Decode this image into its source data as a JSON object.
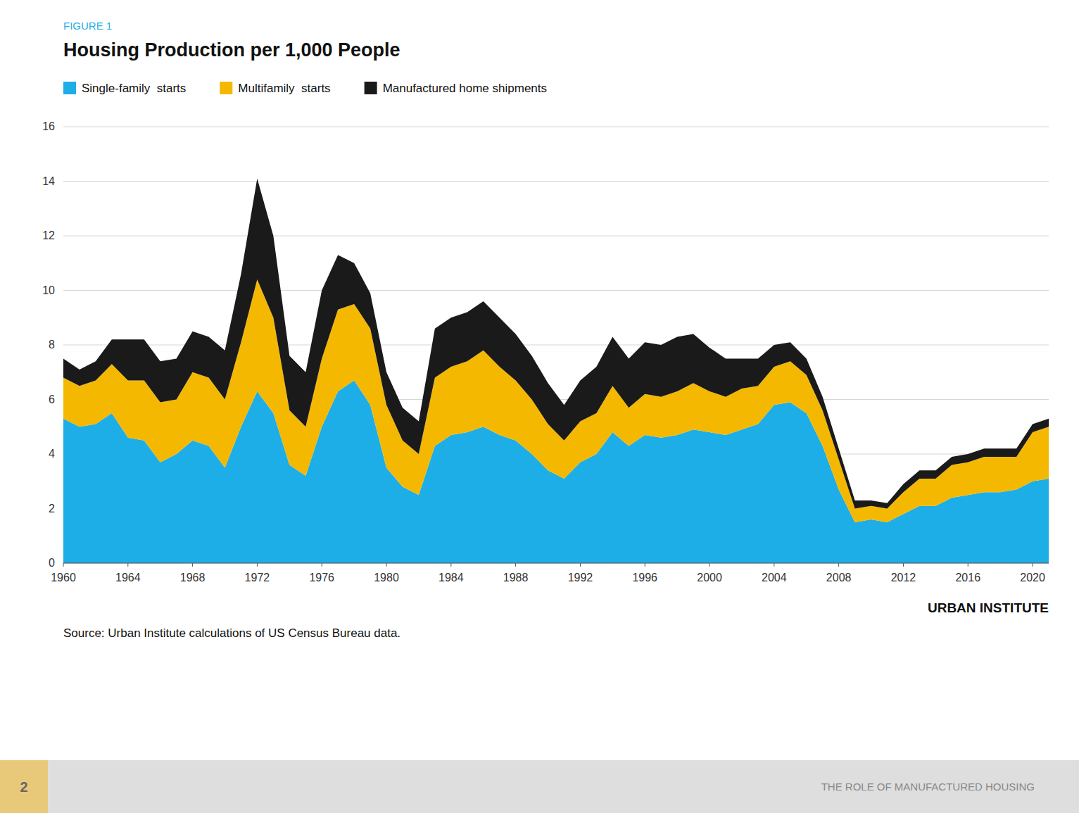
{
  "chart_data": {
    "type": "area",
    "stacked": true,
    "title": "Housing Production per 1,000 People",
    "annotations": [
      "FIGURE 1",
      "Source: Urban Institute calculations of US Census Bureau data.",
      "URBAN INSTITUTE",
      "THE ROLE OF MANUFACTURED HOUSING",
      "2"
    ],
    "x": [
      1960,
      1961,
      1962,
      1963,
      1964,
      1965,
      1966,
      1967,
      1968,
      1969,
      1970,
      1971,
      1972,
      1973,
      1974,
      1975,
      1976,
      1977,
      1978,
      1979,
      1980,
      1981,
      1982,
      1983,
      1984,
      1985,
      1986,
      1987,
      1988,
      1989,
      1990,
      1991,
      1992,
      1993,
      1994,
      1995,
      1996,
      1997,
      1998,
      1999,
      2000,
      2001,
      2002,
      2003,
      2004,
      2005,
      2006,
      2007,
      2008,
      2009,
      2010,
      2011,
      2012,
      2013,
      2014,
      2015,
      2016,
      2017,
      2018,
      2019,
      2020,
      2021
    ],
    "series": [
      {
        "name": "Single-family  starts",
        "color": "#1daee8",
        "values": [
          5.3,
          5.0,
          5.1,
          5.5,
          4.6,
          4.5,
          3.7,
          4.0,
          4.5,
          4.3,
          3.5,
          5.0,
          6.3,
          5.5,
          3.6,
          3.2,
          5.0,
          6.3,
          6.7,
          5.8,
          3.5,
          2.8,
          2.5,
          4.3,
          4.7,
          4.8,
          5.0,
          4.7,
          4.5,
          4.0,
          3.4,
          3.1,
          3.7,
          4.0,
          4.8,
          4.3,
          4.7,
          4.6,
          4.7,
          4.9,
          4.8,
          4.7,
          4.9,
          5.1,
          5.8,
          5.9,
          5.5,
          4.3,
          2.7,
          1.5,
          1.6,
          1.5,
          1.8,
          2.1,
          2.1,
          2.4,
          2.5,
          2.6,
          2.6,
          2.7,
          3.0,
          3.1
        ]
      },
      {
        "name": "Multifamily  starts",
        "color": "#f5b800",
        "values": [
          1.5,
          1.5,
          1.6,
          1.8,
          2.1,
          2.2,
          2.2,
          2.0,
          2.5,
          2.5,
          2.5,
          3.1,
          4.1,
          3.5,
          2.0,
          1.8,
          2.5,
          3.0,
          2.8,
          2.8,
          2.3,
          1.7,
          1.5,
          2.5,
          2.5,
          2.6,
          2.8,
          2.5,
          2.2,
          2.0,
          1.7,
          1.4,
          1.5,
          1.5,
          1.7,
          1.4,
          1.5,
          1.5,
          1.6,
          1.7,
          1.5,
          1.4,
          1.5,
          1.4,
          1.4,
          1.5,
          1.4,
          1.3,
          1.1,
          0.5,
          0.5,
          0.5,
          0.8,
          1.0,
          1.0,
          1.2,
          1.2,
          1.3,
          1.3,
          1.2,
          1.8,
          1.9
        ]
      },
      {
        "name": "Manufactured home shipments",
        "color": "#1a1a1a",
        "values": [
          0.7,
          0.6,
          0.7,
          0.9,
          1.5,
          1.5,
          1.5,
          1.5,
          1.5,
          1.5,
          1.8,
          2.5,
          3.7,
          3.0,
          2.0,
          2.0,
          2.5,
          2.0,
          1.5,
          1.3,
          1.2,
          1.2,
          1.2,
          1.8,
          1.8,
          1.8,
          1.8,
          1.8,
          1.7,
          1.6,
          1.5,
          1.3,
          1.5,
          1.7,
          1.8,
          1.8,
          1.9,
          1.9,
          2.0,
          1.8,
          1.6,
          1.4,
          1.1,
          1.0,
          0.8,
          0.7,
          0.6,
          0.5,
          0.4,
          0.3,
          0.2,
          0.2,
          0.3,
          0.3,
          0.3,
          0.3,
          0.3,
          0.3,
          0.3,
          0.3,
          0.3,
          0.3
        ]
      }
    ],
    "xlim": [
      1960,
      2021
    ],
    "xticks": [
      1960,
      1964,
      1968,
      1972,
      1976,
      1980,
      1984,
      1988,
      1992,
      1996,
      2000,
      2004,
      2008,
      2012,
      2016,
      2020
    ],
    "ylim": [
      0,
      16
    ],
    "yticks": [
      0,
      2,
      4,
      6,
      8,
      10,
      12,
      14,
      16
    ],
    "grid": true,
    "legend": "upper left"
  }
}
